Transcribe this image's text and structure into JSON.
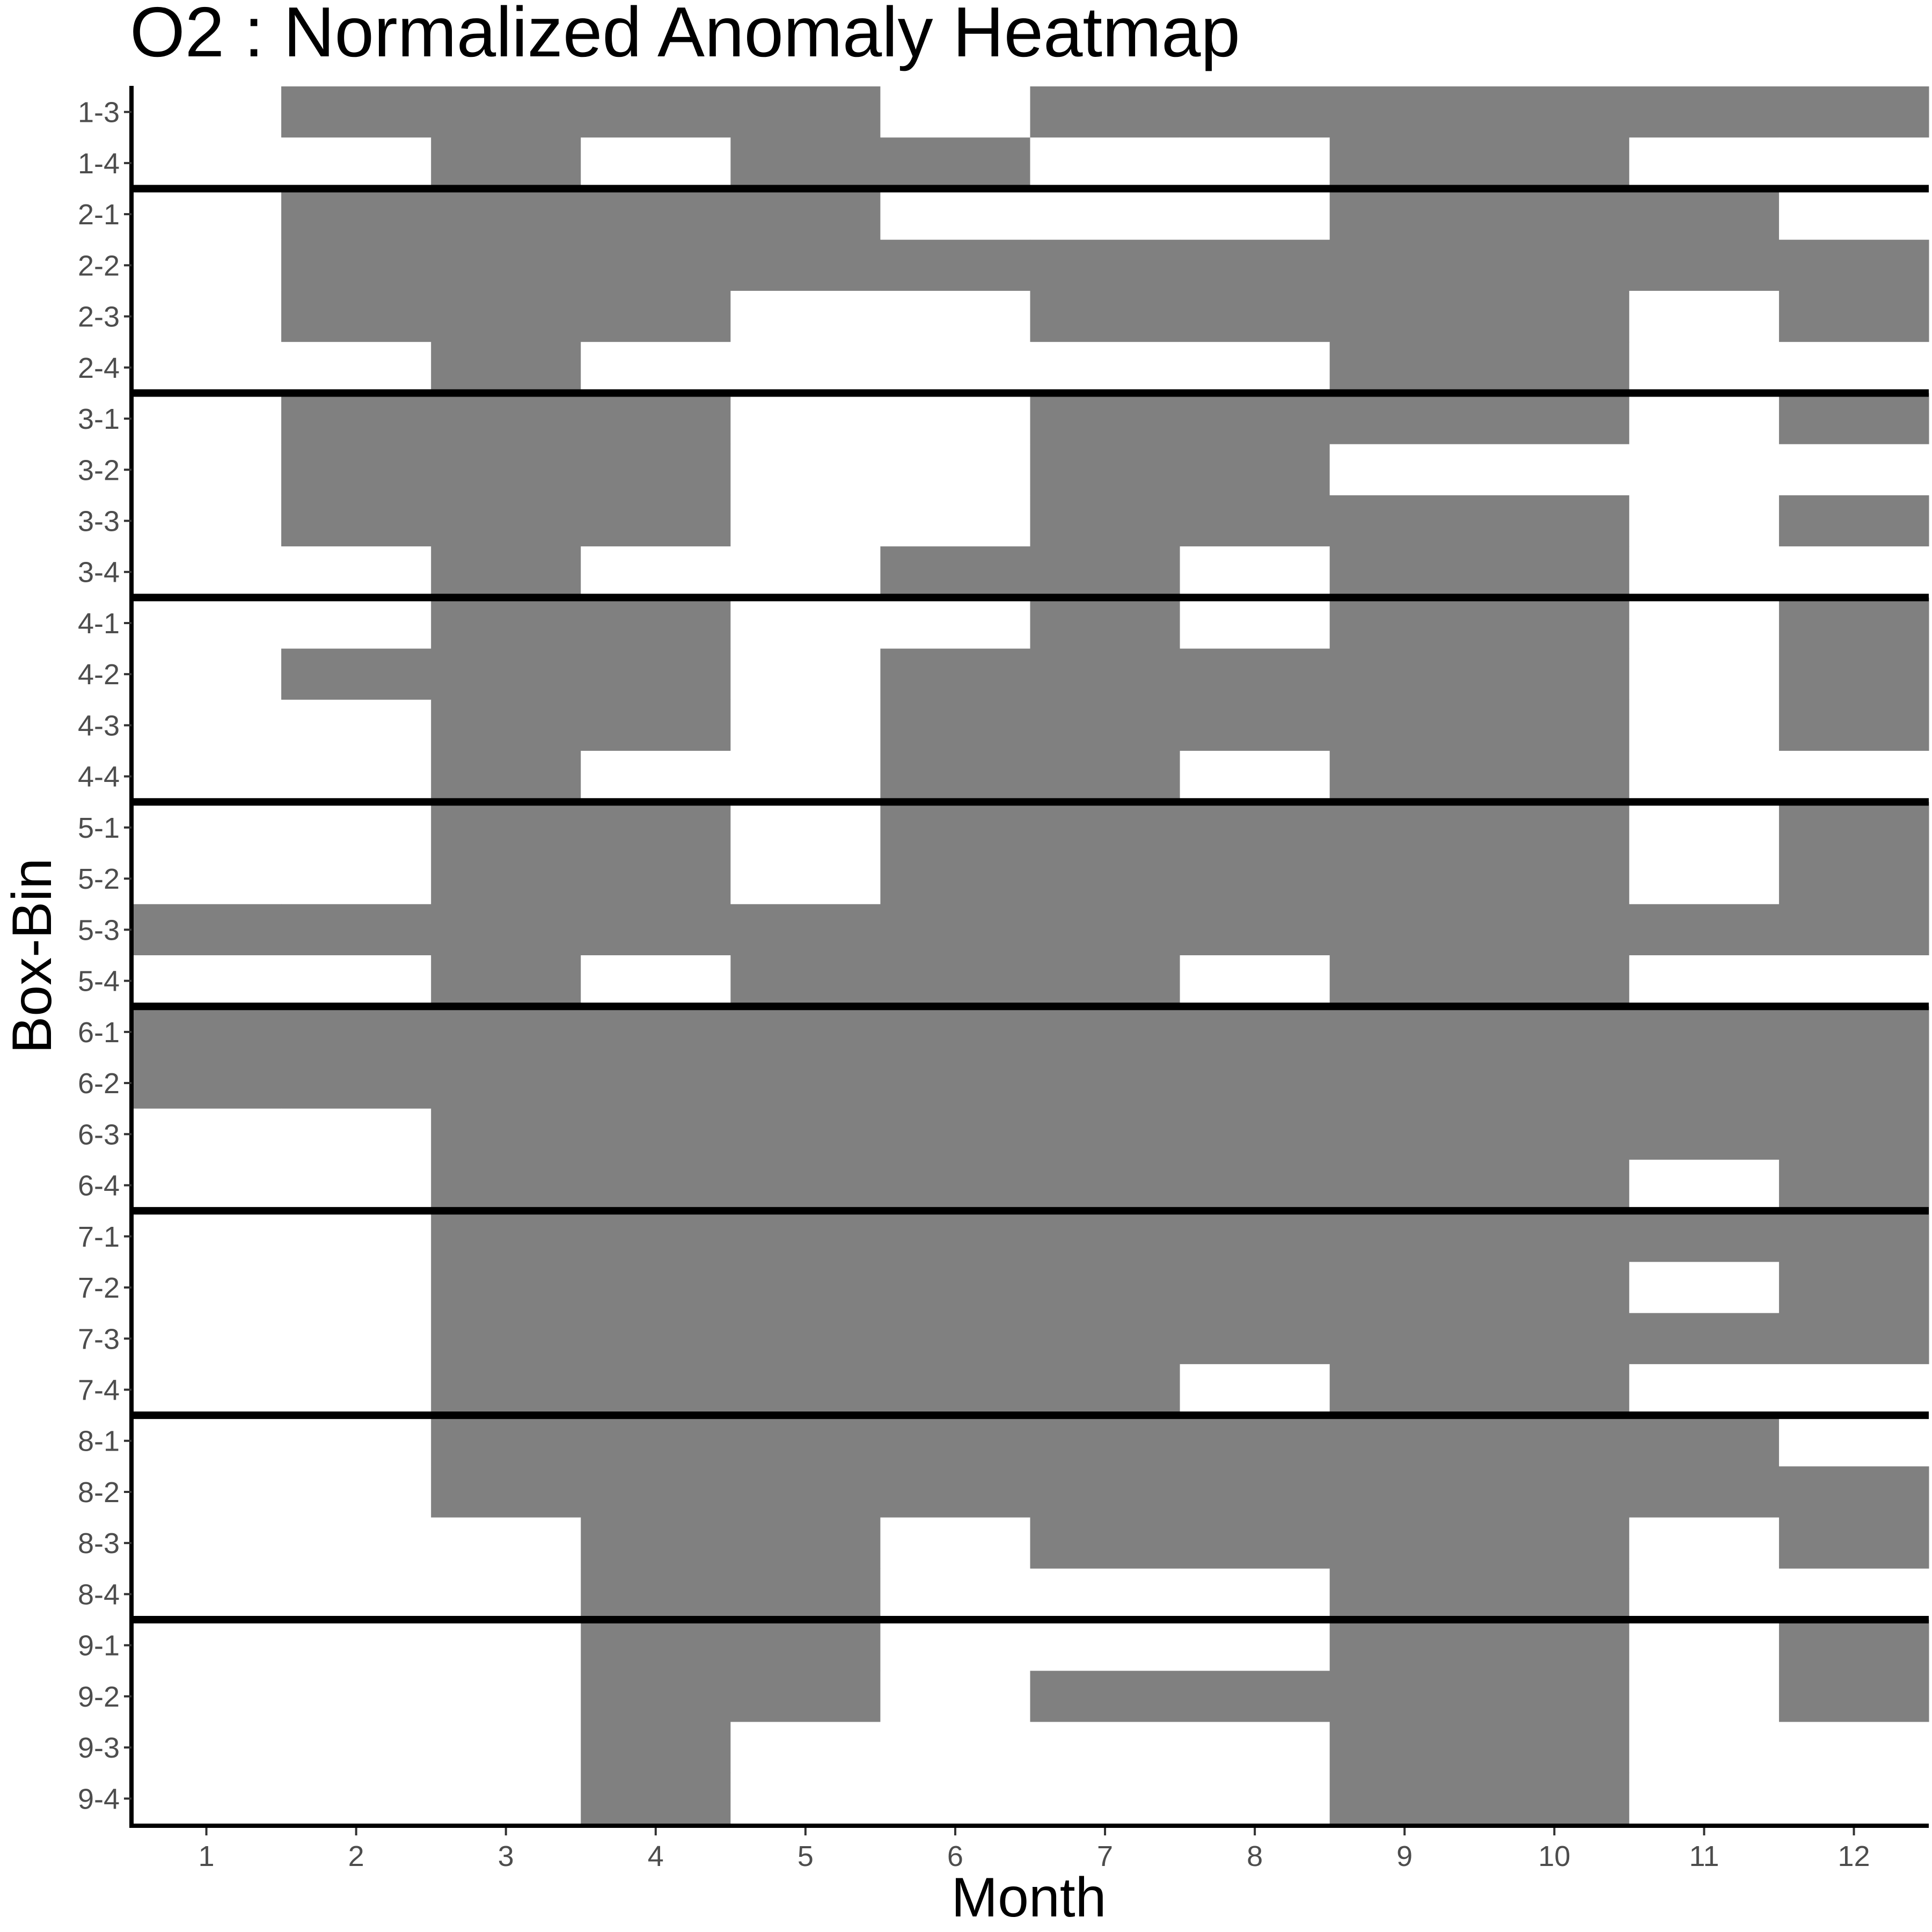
{
  "chart_data": {
    "type": "heatmap",
    "title": "O2 : Normalized Anomaly Heatmap",
    "xlabel": "Month",
    "ylabel": "Box-Bin",
    "x_categories": [
      "1",
      "2",
      "3",
      "4",
      "5",
      "6",
      "7",
      "8",
      "9",
      "10",
      "11",
      "12"
    ],
    "y_categories": [
      "1-3",
      "1-4",
      "2-1",
      "2-2",
      "2-3",
      "2-4",
      "3-1",
      "3-2",
      "3-3",
      "3-4",
      "4-1",
      "4-2",
      "4-3",
      "4-4",
      "5-1",
      "5-2",
      "5-3",
      "5-4",
      "6-1",
      "6-2",
      "6-3",
      "6-4",
      "7-1",
      "7-2",
      "7-3",
      "7-4",
      "8-1",
      "8-2",
      "8-3",
      "8-4",
      "9-1",
      "9-2",
      "9-3",
      "9-4"
    ],
    "values": [
      [
        0,
        1,
        1,
        1,
        1,
        0,
        1,
        1,
        1,
        1,
        1,
        1
      ],
      [
        0,
        0,
        1,
        0,
        1,
        1,
        0,
        0,
        1,
        1,
        0,
        0
      ],
      [
        0,
        1,
        1,
        1,
        1,
        0,
        0,
        0,
        1,
        1,
        1,
        0
      ],
      [
        0,
        1,
        1,
        1,
        1,
        1,
        1,
        1,
        1,
        1,
        1,
        1
      ],
      [
        0,
        1,
        1,
        1,
        0,
        0,
        1,
        1,
        1,
        1,
        0,
        1
      ],
      [
        0,
        0,
        1,
        0,
        0,
        0,
        0,
        0,
        1,
        1,
        0,
        0
      ],
      [
        0,
        1,
        1,
        1,
        0,
        0,
        1,
        1,
        1,
        1,
        0,
        1
      ],
      [
        0,
        1,
        1,
        1,
        0,
        0,
        1,
        1,
        0,
        0,
        0,
        0
      ],
      [
        0,
        1,
        1,
        1,
        0,
        0,
        1,
        1,
        1,
        1,
        0,
        1
      ],
      [
        0,
        0,
        1,
        0,
        0,
        1,
        1,
        0,
        1,
        1,
        0,
        0
      ],
      [
        0,
        0,
        1,
        1,
        0,
        0,
        1,
        0,
        1,
        1,
        0,
        1
      ],
      [
        0,
        1,
        1,
        1,
        0,
        1,
        1,
        1,
        1,
        1,
        0,
        1
      ],
      [
        0,
        0,
        1,
        1,
        0,
        1,
        1,
        1,
        1,
        1,
        0,
        1
      ],
      [
        0,
        0,
        1,
        0,
        0,
        1,
        1,
        0,
        1,
        1,
        0,
        0
      ],
      [
        0,
        0,
        1,
        1,
        0,
        1,
        1,
        1,
        1,
        1,
        0,
        1
      ],
      [
        0,
        0,
        1,
        1,
        0,
        1,
        1,
        1,
        1,
        1,
        0,
        1
      ],
      [
        1,
        1,
        1,
        1,
        1,
        1,
        1,
        1,
        1,
        1,
        1,
        1
      ],
      [
        0,
        0,
        1,
        0,
        1,
        1,
        1,
        0,
        1,
        1,
        0,
        0
      ],
      [
        1,
        1,
        1,
        1,
        1,
        1,
        1,
        1,
        1,
        1,
        1,
        1
      ],
      [
        1,
        1,
        1,
        1,
        1,
        1,
        1,
        1,
        1,
        1,
        1,
        1
      ],
      [
        0,
        0,
        1,
        1,
        1,
        1,
        1,
        1,
        1,
        1,
        1,
        1
      ],
      [
        0,
        0,
        1,
        1,
        1,
        1,
        1,
        1,
        1,
        1,
        0,
        1
      ],
      [
        0,
        0,
        1,
        1,
        1,
        1,
        1,
        1,
        1,
        1,
        1,
        1
      ],
      [
        0,
        0,
        1,
        1,
        1,
        1,
        1,
        1,
        1,
        1,
        0,
        1
      ],
      [
        0,
        0,
        1,
        1,
        1,
        1,
        1,
        1,
        1,
        1,
        1,
        1
      ],
      [
        0,
        0,
        1,
        1,
        1,
        1,
        1,
        0,
        1,
        1,
        0,
        0
      ],
      [
        0,
        0,
        1,
        1,
        1,
        1,
        1,
        1,
        1,
        1,
        1,
        0
      ],
      [
        0,
        0,
        1,
        1,
        1,
        1,
        1,
        1,
        1,
        1,
        1,
        1
      ],
      [
        0,
        0,
        0,
        1,
        1,
        0,
        1,
        1,
        1,
        1,
        0,
        1
      ],
      [
        0,
        0,
        0,
        1,
        1,
        0,
        0,
        0,
        1,
        1,
        0,
        0
      ],
      [
        0,
        0,
        0,
        1,
        1,
        0,
        0,
        0,
        1,
        1,
        0,
        1
      ],
      [
        0,
        0,
        0,
        1,
        1,
        0,
        1,
        1,
        1,
        1,
        0,
        1
      ],
      [
        0,
        0,
        0,
        1,
        0,
        0,
        0,
        0,
        1,
        1,
        0,
        0
      ],
      [
        0,
        0,
        0,
        1,
        0,
        0,
        0,
        0,
        1,
        1,
        0,
        0
      ]
    ],
    "separators_after_rows": [
      "1-4",
      "2-4",
      "3-4",
      "4-4",
      "5-4",
      "6-4",
      "7-4",
      "8-4"
    ],
    "colors": {
      "anomaly": "#808080",
      "normal": "#ffffff",
      "separator": "#000000",
      "axis": "#000000",
      "tick_label": "#4d4d4d"
    },
    "legend": "none",
    "grid": false
  }
}
